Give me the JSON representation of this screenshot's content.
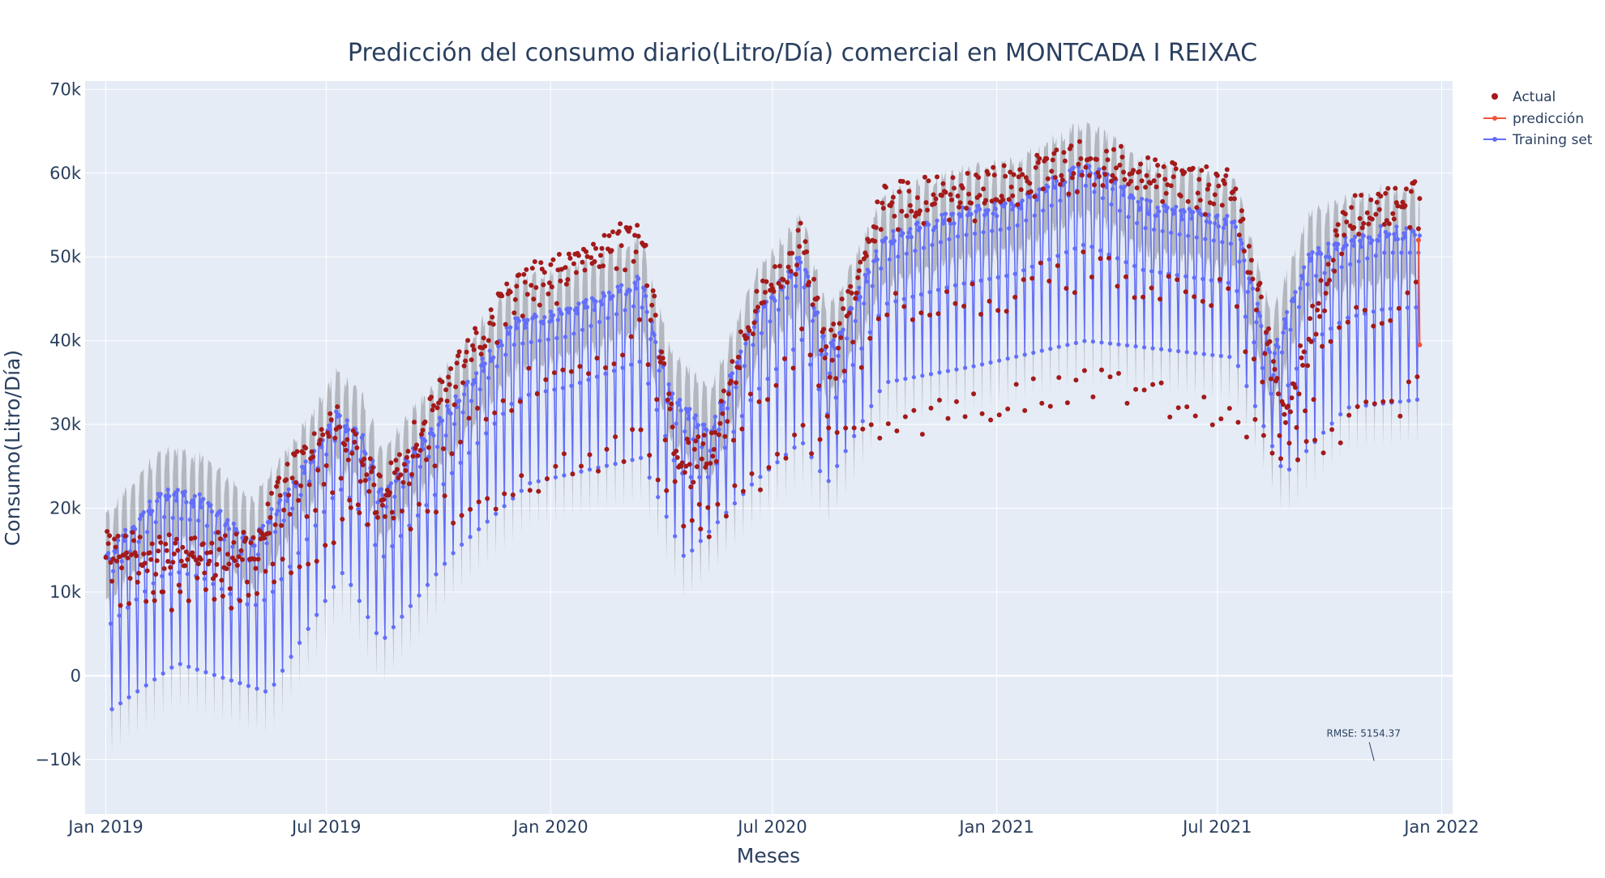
{
  "chart_data": {
    "type": "scatter",
    "title": "Predicción del consumo diario(Litro/Día) comercial en MONTCADA I REIXAC",
    "xlabel": "Meses",
    "ylabel": "Consumo(Litro/Día)",
    "x_range": [
      "2018-12-15",
      "2022-01-10"
    ],
    "ylim": [
      -16500,
      71000
    ],
    "grid": true,
    "legend_position": "top-right",
    "x_ticks": [
      {
        "date": "2019-01-01",
        "label": "Jan 2019"
      },
      {
        "date": "2019-07-01",
        "label": "Jul 2019"
      },
      {
        "date": "2020-01-01",
        "label": "Jan 2020"
      },
      {
        "date": "2020-07-01",
        "label": "Jul 2020"
      },
      {
        "date": "2021-01-01",
        "label": "Jan 2021"
      },
      {
        "date": "2021-07-01",
        "label": "Jul 2021"
      },
      {
        "date": "2022-01-01",
        "label": "Jan 2022"
      }
    ],
    "y_ticks": [
      {
        "value": -10000,
        "label": "−10k"
      },
      {
        "value": 0,
        "label": "0"
      },
      {
        "value": 10000,
        "label": "10k"
      },
      {
        "value": 20000,
        "label": "20k"
      },
      {
        "value": 30000,
        "label": "30k"
      },
      {
        "value": 40000,
        "label": "40k"
      },
      {
        "value": 50000,
        "label": "50k"
      },
      {
        "value": 60000,
        "label": "60k"
      },
      {
        "value": 70000,
        "label": "70k"
      }
    ],
    "start_date": "2019-01-01",
    "end_date": "2021-12-14",
    "series": [
      {
        "name": "Actual",
        "mode": "markers",
        "color": "#a31a1a"
      },
      {
        "name": "predicción",
        "mode": "lines+markers",
        "color": "#ef553b"
      },
      {
        "name": "Training set",
        "mode": "lines+markers",
        "color": "#636efa"
      }
    ],
    "uncertainty_band_color": "rgba(120,120,120,0.45)",
    "weekly_pattern": {
      "weekday_level": [
        [
          "2019-01-01",
          14000
        ],
        [
          "2019-02-15",
          21500
        ],
        [
          "2019-03-20",
          21000
        ],
        [
          "2019-05-01",
          16000
        ],
        [
          "2019-06-01",
          22000
        ],
        [
          "2019-07-10",
          31000
        ],
        [
          "2019-07-31",
          28000
        ],
        [
          "2019-08-15",
          22000
        ],
        [
          "2019-10-01",
          30000
        ],
        [
          "2019-12-01",
          42000
        ],
        [
          "2020-01-15",
          43000
        ],
        [
          "2020-03-15",
          47000
        ],
        [
          "2020-04-10",
          33000
        ],
        [
          "2020-05-10",
          29000
        ],
        [
          "2020-06-15",
          42000
        ],
        [
          "2020-07-25",
          50000
        ],
        [
          "2020-08-15",
          38000
        ],
        [
          "2020-10-01",
          52000
        ],
        [
          "2020-12-01",
          55000
        ],
        [
          "2021-01-15",
          56000
        ],
        [
          "2021-03-15",
          61000
        ],
        [
          "2021-05-01",
          56000
        ],
        [
          "2021-07-15",
          54000
        ],
        [
          "2021-08-15",
          38000
        ],
        [
          "2021-09-15",
          50000
        ],
        [
          "2021-11-15",
          53000
        ],
        [
          "2021-12-14",
          53000
        ]
      ],
      "weekend_level": [
        [
          "2019-01-01",
          -4500
        ],
        [
          "2019-03-01",
          1500
        ],
        [
          "2019-05-15",
          -2000
        ],
        [
          "2019-07-15",
          12500
        ],
        [
          "2019-08-15",
          4000
        ],
        [
          "2019-10-15",
          15000
        ],
        [
          "2019-12-15",
          23000
        ],
        [
          "2020-03-15",
          26000
        ],
        [
          "2020-04-20",
          14000
        ],
        [
          "2020-06-15",
          23000
        ],
        [
          "2020-07-25",
          28000
        ],
        [
          "2020-08-15",
          23000
        ],
        [
          "2020-10-01",
          35000
        ],
        [
          "2020-12-15",
          37000
        ],
        [
          "2021-03-15",
          40000
        ],
        [
          "2021-07-15",
          38000
        ],
        [
          "2021-08-25",
          24000
        ],
        [
          "2021-10-15",
          32000
        ],
        [
          "2021-12-14",
          33000
        ]
      ],
      "actual_weekday_level": [
        [
          "2019-01-01",
          15000
        ],
        [
          "2019-05-01",
          15000
        ],
        [
          "2019-06-01",
          24000
        ],
        [
          "2019-07-10",
          30000
        ],
        [
          "2019-08-15",
          22000
        ],
        [
          "2019-10-01",
          33000
        ],
        [
          "2019-12-01",
          46000
        ],
        [
          "2020-03-15",
          53000
        ],
        [
          "2020-04-15",
          27000
        ],
        [
          "2020-05-10",
          27000
        ],
        [
          "2020-06-15",
          44000
        ],
        [
          "2020-07-25",
          52000
        ],
        [
          "2020-08-15",
          38000
        ],
        [
          "2020-10-01",
          57000
        ],
        [
          "2020-12-15",
          58000
        ],
        [
          "2021-03-15",
          62000
        ],
        [
          "2021-07-15",
          58000
        ],
        [
          "2021-08-25",
          32000
        ],
        [
          "2021-10-15",
          55000
        ],
        [
          "2021-12-14",
          57000
        ]
      ],
      "actual_weekend_level": [
        [
          "2019-01-01",
          10000
        ],
        [
          "2019-05-01",
          9500
        ],
        [
          "2019-07-15",
          18000
        ],
        [
          "2019-10-15",
          20000
        ],
        [
          "2019-12-15",
          23000
        ],
        [
          "2020-03-15",
          28000
        ],
        [
          "2020-05-01",
          17000
        ],
        [
          "2020-07-25",
          28000
        ],
        [
          "2020-10-15",
          30000
        ],
        [
          "2021-03-15",
          35000
        ],
        [
          "2021-07-15",
          31000
        ],
        [
          "2021-08-25",
          26000
        ],
        [
          "2021-12-14",
          34000
        ]
      ],
      "prediction_segment": [
        {
          "date": "2021-12-13",
          "value": 52000
        },
        {
          "date": "2021-12-14",
          "value": 39500
        }
      ]
    },
    "annotation": {
      "text": "RMSE: 5154.37",
      "date": "2021-10-29",
      "value": -9000
    }
  }
}
